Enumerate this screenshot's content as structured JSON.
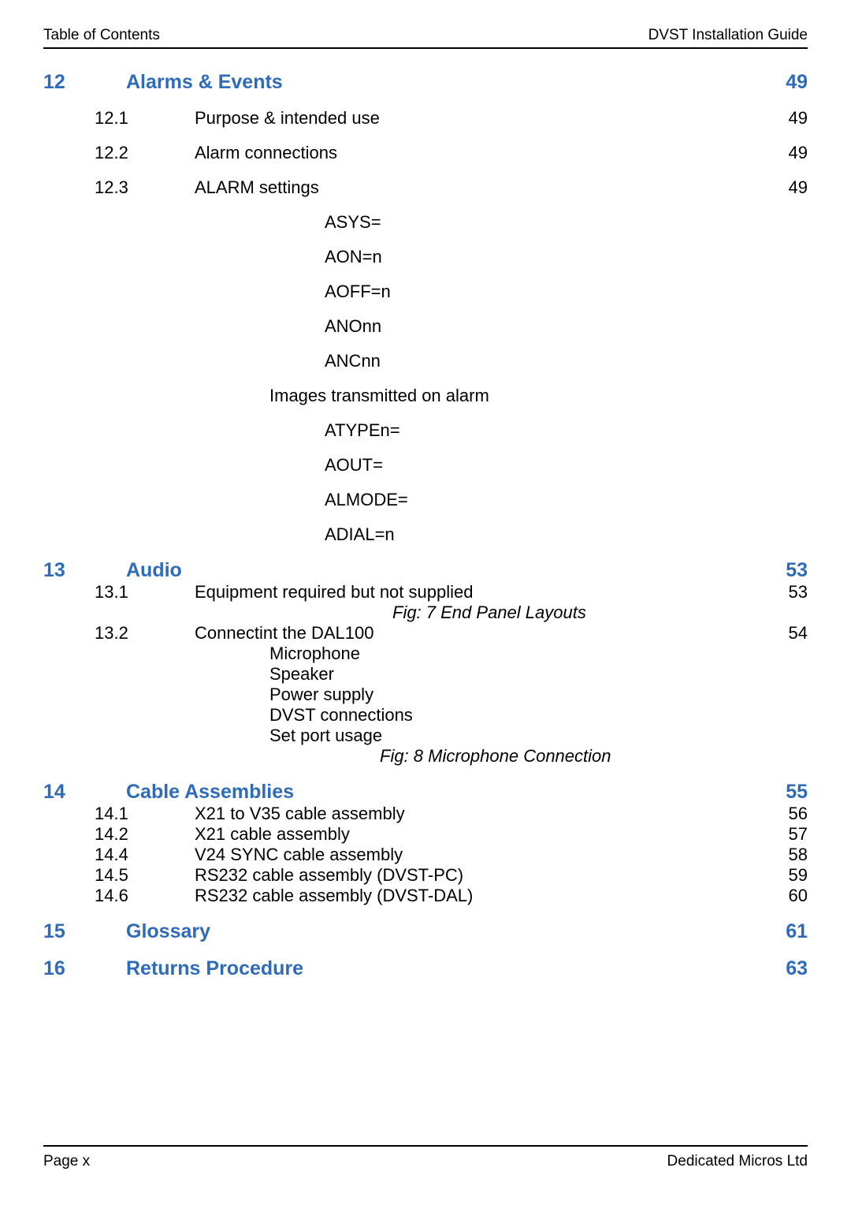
{
  "header": {
    "left": "Table of Contents",
    "right": "DVST Installation Guide"
  },
  "footer": {
    "left": "Page  x",
    "right": "Dedicated Micros Ltd"
  },
  "colors": {
    "section_heading": "#2e6bb8",
    "body_text": "#000000",
    "rule": "#000000",
    "background": "#ffffff"
  },
  "toc": {
    "sections": [
      {
        "num": "12",
        "title": "Alarms & Events",
        "page": "49",
        "subs": [
          {
            "num": "12.1",
            "title": "Purpose & intended use",
            "page": "49"
          },
          {
            "num": "12.2",
            "title": "Alarm connections",
            "page": "49"
          },
          {
            "num": "12.3",
            "title": "ALARM settings",
            "page": "49"
          }
        ],
        "settings_group1": [
          "ASYS=",
          "AON=n",
          "AOFF=n",
          "ANOnn",
          "ANCnn"
        ],
        "between_label": "Images transmitted on alarm",
        "settings_group2": [
          "ATYPEn=",
          "AOUT=",
          "ALMODE=",
          "ADIAL=n"
        ]
      },
      {
        "num": "13",
        "title": "Audio",
        "page": "53",
        "subs": [
          {
            "num": "13.1",
            "title": "Equipment required but not supplied",
            "page": "53"
          },
          {
            "num": "13.2",
            "title": "Connectint the DAL100",
            "page": "54"
          }
        ],
        "fig1": "Fig: 7  End Panel Layouts",
        "dal_items": [
          "Microphone",
          "Speaker",
          "Power supply",
          "DVST connections",
          "Set port usage"
        ],
        "fig2": "Fig: 8  Microphone Connection"
      },
      {
        "num": "14",
        "title": "Cable Assemblies",
        "page": "55",
        "subs": [
          {
            "num": "14.1",
            "title": "X21 to V35 cable assembly",
            "page": "56"
          },
          {
            "num": "14.2",
            "title": "X21 cable assembly",
            "page": "57"
          },
          {
            "num": "14.4",
            "title": "V24 SYNC cable assembly",
            "page": "58"
          },
          {
            "num": "14.5",
            "title": "RS232 cable assembly (DVST-PC)",
            "page": "59"
          },
          {
            "num": "14.6",
            "title": "RS232 cable assembly (DVST-DAL)",
            "page": "60"
          }
        ]
      },
      {
        "num": "15",
        "title": "Glossary",
        "page": "61",
        "subs": []
      },
      {
        "num": "16",
        "title": "Returns Procedure",
        "page": "63",
        "subs": []
      }
    ]
  }
}
